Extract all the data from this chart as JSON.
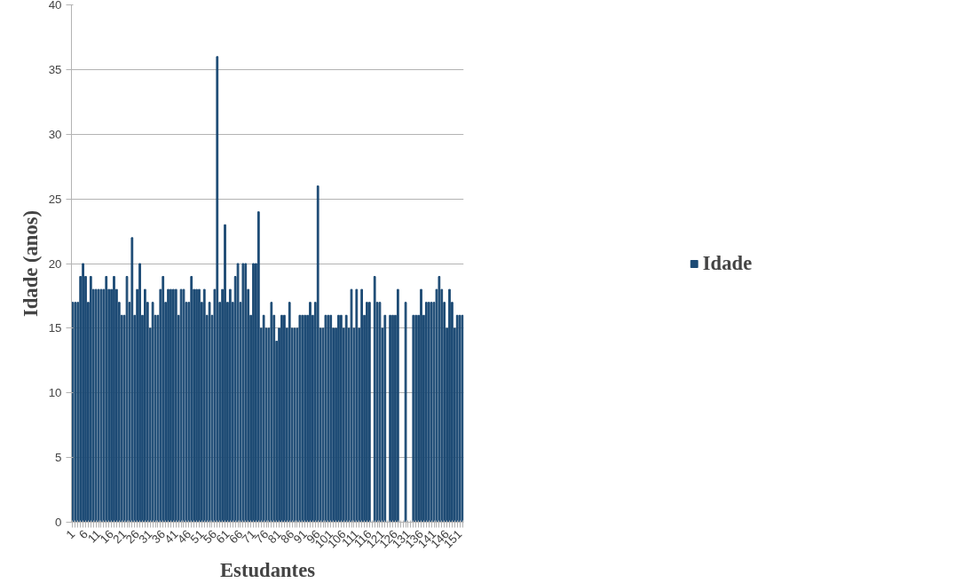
{
  "chart_data": {
    "type": "bar",
    "xlabel": "Estudantes",
    "ylabel": "Idade (anos)",
    "categories": [
      "1",
      null,
      null,
      null,
      null,
      "6",
      null,
      null,
      null,
      null,
      "11",
      null,
      null,
      null,
      null,
      "16",
      null,
      null,
      null,
      null,
      "21",
      null,
      null,
      null,
      null,
      "26",
      null,
      null,
      null,
      null,
      "31",
      null,
      null,
      null,
      null,
      "36",
      null,
      null,
      null,
      null,
      "41",
      null,
      null,
      null,
      null,
      "46",
      null,
      null,
      null,
      null,
      "51",
      null,
      null,
      null,
      null,
      "56",
      null,
      null,
      null,
      null,
      "61",
      null,
      null,
      null,
      null,
      "66",
      null,
      null,
      null,
      null,
      "71",
      null,
      null,
      null,
      null,
      "76",
      null,
      null,
      null,
      null,
      "81",
      null,
      null,
      null,
      null,
      "86",
      null,
      null,
      null,
      null,
      "91",
      null,
      null,
      null,
      null,
      "96",
      null,
      null,
      null,
      null,
      "101",
      null,
      null,
      null,
      null,
      "106",
      null,
      null,
      null,
      null,
      "111",
      null,
      null,
      null,
      null,
      "116",
      null,
      null,
      null,
      null,
      "121",
      null,
      null,
      null,
      null,
      "126",
      null,
      null,
      null,
      null,
      "131",
      null,
      null,
      null,
      null,
      "136",
      null,
      null,
      null,
      null,
      "141",
      null,
      null,
      null,
      null,
      "146",
      null,
      null,
      null,
      null,
      "151",
      null
    ],
    "series": [
      {
        "name": "Idade",
        "color": "#1c4a74",
        "values": [
          17,
          17,
          17,
          19,
          20,
          19,
          17,
          19,
          18,
          18,
          18,
          18,
          18,
          19,
          18,
          18,
          19,
          18,
          17,
          16,
          16,
          19,
          17,
          22,
          16,
          18,
          20,
          16,
          18,
          17,
          15,
          17,
          16,
          16,
          18,
          19,
          17,
          18,
          18,
          18,
          18,
          16,
          18,
          18,
          17,
          17,
          19,
          18,
          18,
          18,
          17,
          18,
          16,
          17,
          16,
          18,
          36,
          17,
          18,
          23,
          17,
          18,
          17,
          19,
          20,
          17,
          20,
          20,
          18,
          16,
          20,
          20,
          24,
          15,
          16,
          15,
          15,
          17,
          16,
          14,
          15,
          16,
          16,
          15,
          17,
          15,
          15,
          15,
          16,
          16,
          16,
          16,
          17,
          16,
          17,
          26,
          15,
          15,
          16,
          16,
          16,
          15,
          15,
          16,
          16,
          15,
          16,
          15,
          18,
          15,
          18,
          15,
          18,
          16,
          17,
          17,
          null,
          19,
          17,
          17,
          15,
          16,
          null,
          16,
          16,
          16,
          18,
          null,
          null,
          17,
          null,
          null,
          16,
          16,
          16,
          18,
          16,
          17,
          17,
          17,
          17,
          18,
          19,
          18,
          17,
          15,
          18,
          17,
          15,
          16,
          16,
          16
        ]
      }
    ],
    "ylim": [
      0,
      40
    ],
    "yticks": [
      0,
      5,
      10,
      15,
      20,
      25,
      30,
      35,
      40
    ],
    "grid": "y",
    "legend": "right"
  }
}
